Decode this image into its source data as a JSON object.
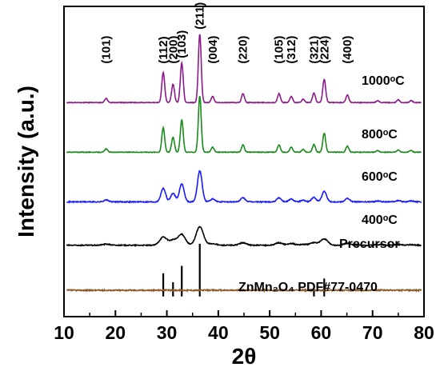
{
  "chart_data": {
    "type": "line",
    "xlabel": "2θ",
    "ylabel": "Intensity  (a.u.)",
    "xlim": [
      10,
      80
    ],
    "x_ticks": [
      "10",
      "20",
      "30",
      "40",
      "50",
      "60",
      "70",
      "80"
    ],
    "y_ticks_labeled": false,
    "grid": false,
    "reference": {
      "label": "ZnMn₂O₄ PDF#77-0470",
      "color": "#000000",
      "lines": [
        {
          "x": 29.3,
          "rel": 0.44
        },
        {
          "x": 31.2,
          "rel": 0.27
        },
        {
          "x": 32.9,
          "rel": 0.58
        },
        {
          "x": 36.4,
          "rel": 1.0
        },
        {
          "x": 60.6,
          "rel": 0.34
        },
        {
          "x": 58.6,
          "rel": 0.14
        }
      ]
    },
    "series": [
      {
        "name": "Precursor",
        "color": "#8B5A2B",
        "baseline": 0.085,
        "scale": 0.0,
        "noise": 0.004
      },
      {
        "name": "400°C",
        "color": "#000000",
        "baseline": 0.23,
        "scale": 0.06,
        "noise": 0.003
      },
      {
        "name": "600°C",
        "color": "#1a1aff",
        "baseline": 0.37,
        "scale": 0.1,
        "noise": 0.003
      },
      {
        "name": "800°C",
        "color": "#1a8a1a",
        "baseline": 0.53,
        "scale": 0.18,
        "noise": 0.002
      },
      {
        "name": "1000°C",
        "color": "#8b1a8b",
        "baseline": 0.69,
        "scale": 0.22,
        "noise": 0.002
      }
    ],
    "peaks": [
      {
        "x": 18.2,
        "rel": 0.06,
        "hkl": "(101)"
      },
      {
        "x": 29.3,
        "rel": 0.44,
        "hkl": "(112)"
      },
      {
        "x": 31.2,
        "rel": 0.27,
        "hkl": "(200)"
      },
      {
        "x": 32.9,
        "rel": 0.58,
        "hkl": "(103)"
      },
      {
        "x": 36.4,
        "rel": 1.0,
        "hkl": "(211)"
      },
      {
        "x": 38.9,
        "rel": 0.09,
        "hkl": "(004)"
      },
      {
        "x": 44.8,
        "rel": 0.13,
        "hkl": "(220)"
      },
      {
        "x": 51.8,
        "rel": 0.13,
        "hkl": "(105)"
      },
      {
        "x": 54.2,
        "rel": 0.09,
        "hkl": "(312)"
      },
      {
        "x": 56.5,
        "rel": 0.05,
        "hkl": ""
      },
      {
        "x": 58.6,
        "rel": 0.14,
        "hkl": "(321)"
      },
      {
        "x": 60.6,
        "rel": 0.34,
        "hkl": "(224)"
      },
      {
        "x": 65.1,
        "rel": 0.11,
        "hkl": "(400)"
      },
      {
        "x": 71.0,
        "rel": 0.03,
        "hkl": ""
      },
      {
        "x": 75.0,
        "rel": 0.04,
        "hkl": ""
      },
      {
        "x": 77.5,
        "rel": 0.03,
        "hkl": ""
      }
    ],
    "series_labels": [
      {
        "series": "1000°C",
        "text": "1000ᵒC"
      },
      {
        "series": "800°C",
        "text": "800ᵒC"
      },
      {
        "series": "600°C",
        "text": "600ᵒC"
      },
      {
        "series": "400°C",
        "text": "400ᵒC"
      },
      {
        "series": "Precursor",
        "text": "Precursor"
      }
    ]
  }
}
